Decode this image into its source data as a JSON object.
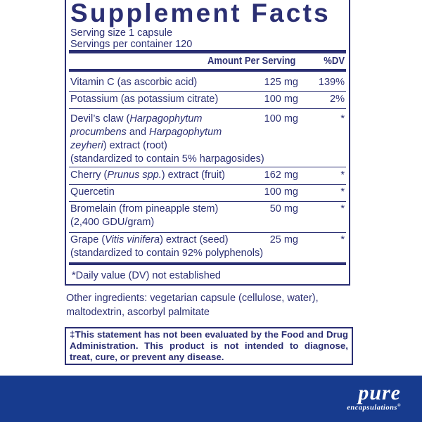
{
  "title": "Supplement Facts",
  "serving_size": "Serving size  1 capsule",
  "servings_per_container": "Servings per container  120",
  "headers": {
    "amount": "Amount Per Serving",
    "dv": "%DV"
  },
  "rows": [
    {
      "name": "Vitamin C (as ascorbic acid)",
      "amount": "125 mg",
      "dv": "139%"
    },
    {
      "name": "Potassium (as potassium citrate)",
      "amount": "100 mg",
      "dv": "2%"
    },
    {
      "name_parts": [
        "Devil’s claw (",
        "Harpagophytum procumbens",
        " and ",
        "Harpagophytum zeyheri",
        ") extract (root)"
      ],
      "sub": "(standardized to contain 5% harpagosides)",
      "amount": "100 mg",
      "dv": "*"
    },
    {
      "name_parts": [
        "Cherry (",
        "Prunus spp.",
        ") extract (fruit)"
      ],
      "amount": "162 mg",
      "dv": "*"
    },
    {
      "name": "Quercetin",
      "amount": "100 mg",
      "dv": "*"
    },
    {
      "name": "Bromelain (from pineapple stem)",
      "sub": "(2,400 GDU/gram)",
      "amount": "50 mg",
      "dv": "*"
    },
    {
      "name_parts": [
        "Grape (",
        "Vitis vinifera",
        ") extract (seed)"
      ],
      "sub": "(standardized to contain 92% polyphenols)",
      "amount": "25 mg",
      "dv": "*"
    }
  ],
  "footnote": "*Daily value (DV) not established",
  "other_ingredients": "Other ingredients: vegetarian capsule (cellulose, water), maltodextrin, ascorbyl palmitate",
  "disclaimer": "‡This statement has not been evaluated by the Food and Drug Administration. This product is not intended to diagnose, treat, cure, or prevent any disease.",
  "logo": {
    "word": "pure",
    "sub": "encapsulations",
    "mark": "®"
  },
  "colors": {
    "text": "#2b2f73",
    "band": "#173b8e"
  }
}
